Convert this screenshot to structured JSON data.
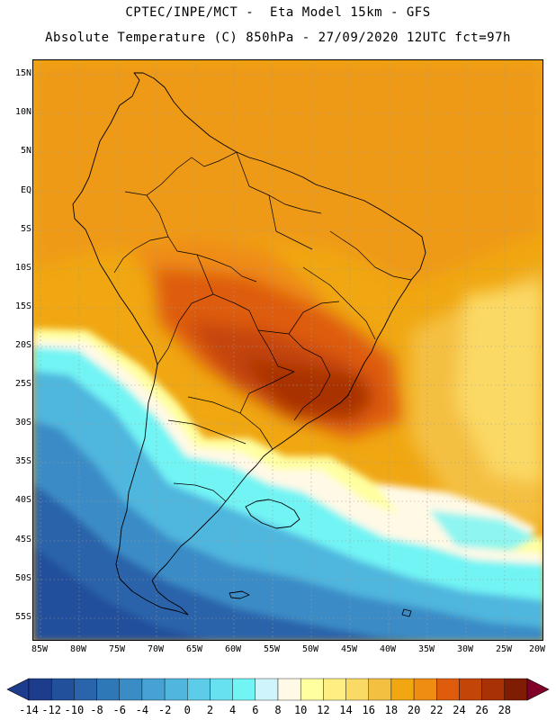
{
  "header": {
    "title_line1": "CPTEC/INPE/MCT -  Eta Model 15km - GFS",
    "title_line2": "Absolute Temperature (C) 850hPa - 27/09/2020 12UTC fct=97h"
  },
  "map": {
    "lat_labels": [
      "15N",
      "10N",
      "5N",
      "EQ",
      "5S",
      "10S",
      "15S",
      "20S",
      "25S",
      "30S",
      "35S",
      "40S",
      "45S",
      "50S",
      "55S"
    ],
    "lon_labels": [
      "85W",
      "80W",
      "75W",
      "70W",
      "65W",
      "60W",
      "55W",
      "50W",
      "45W",
      "40W",
      "35W",
      "30W",
      "25W",
      "20W"
    ]
  },
  "colorbar": {
    "labels": [
      "-14",
      "-12",
      "-10",
      "-8",
      "-6",
      "-4",
      "-2",
      "0",
      "2",
      "4",
      "6",
      "8",
      "10",
      "12",
      "14",
      "16",
      "18",
      "20",
      "22",
      "24",
      "26",
      "28"
    ],
    "colors": [
      "#1e3c8c",
      "#23509b",
      "#2a64aa",
      "#2f78b8",
      "#3a8cc6",
      "#45a2d2",
      "#50b6de",
      "#5ccce8",
      "#67e0ef",
      "#72f4f4",
      "#cff4fb",
      "#fff9e6",
      "#ffffa0",
      "#ffef82",
      "#fbd965",
      "#f4c042",
      "#f0a712",
      "#ef8c12",
      "#de5c0b",
      "#c44508",
      "#a83206",
      "#7f1d04"
    ],
    "under_color": "#1e3c8c",
    "over_color": "#800028"
  }
}
